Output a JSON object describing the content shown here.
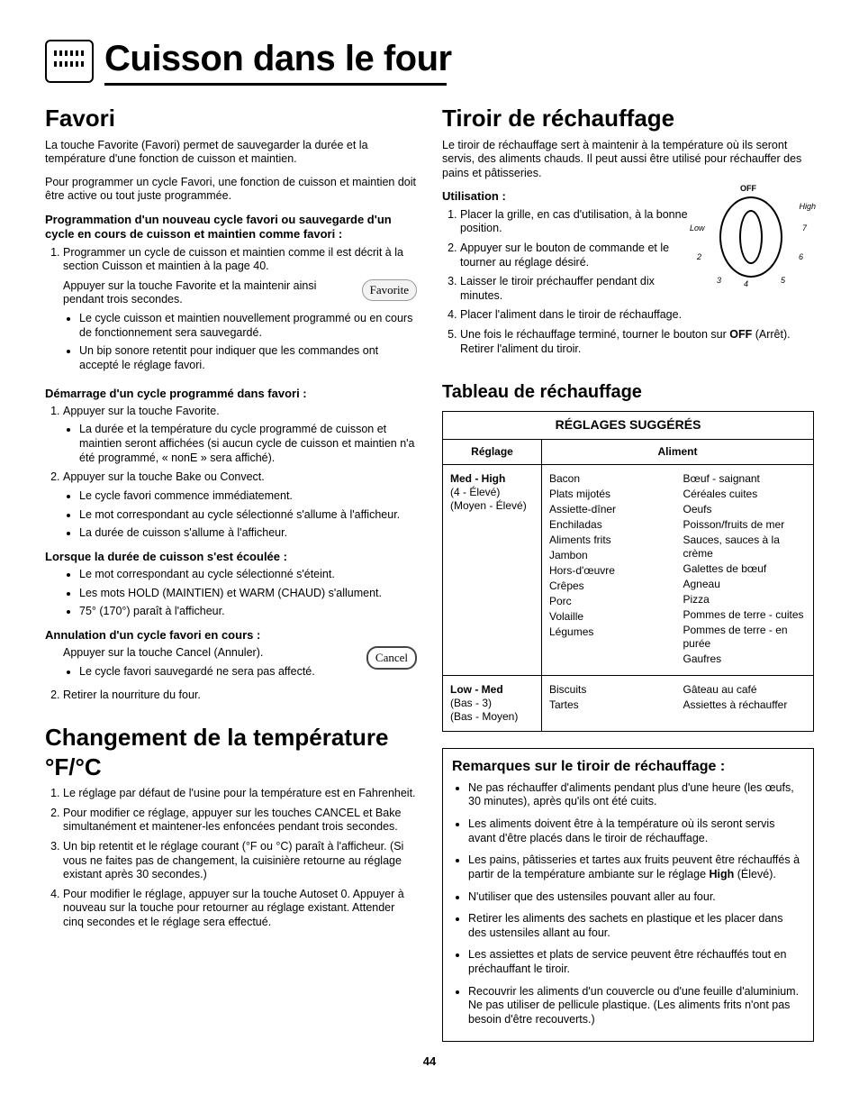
{
  "page_number": "44",
  "header": {
    "title": "Cuisson dans le four"
  },
  "left": {
    "favori": {
      "heading": "Favori",
      "intro1": "La touche Favorite (Favori) permet de sauvegarder la durée et la température d'une fonction de cuisson et maintien.",
      "intro2": "Pour programmer un cycle Favori, une fonction de cuisson et maintien doit être active ou tout juste programmée.",
      "sub1": "Programmation d'un nouveau cycle favori ou sauvegarde d'un cycle en cours de cuisson et maintien comme favori :",
      "ol1": {
        "i1": "Programmer un cycle de cuisson et maintien comme il est décrit à la section Cuisson et maintien à la page 40.",
        "i2": "Appuyer sur la touche Favorite et la maintenir ainsi pendant trois secondes.",
        "b2a": "Le cycle cuisson et maintien nouvellement programmé ou en cours de fonctionnement sera sauvegardé.",
        "b2b": "Un bip sonore retentit pour indiquer que les commandes ont accepté le réglage favori."
      },
      "favorite_btn": "Favorite",
      "sub2": "Démarrage d'un cycle programmé dans favori :",
      "ol2": {
        "i1": "Appuyer sur la touche Favorite.",
        "b1a": "La durée et la température du cycle programmé de cuisson et maintien seront affichées (si aucun cycle de cuisson et maintien n'a été programmé, « nonE » sera affiché).",
        "i2": "Appuyer sur la touche Bake ou Convect.",
        "b2a": "Le cycle favori commence immédiatement.",
        "b2b": "Le mot correspondant au cycle sélectionné s'allume à l'afficheur.",
        "b2c": "La durée de cuisson s'allume à l'afficheur."
      },
      "sub3": "Lorsque la durée de cuisson s'est écoulée :",
      "ul3": {
        "a": "Le mot correspondant au cycle sélectionné s'éteint.",
        "b": "Les mots HOLD (MAINTIEN) et WARM (CHAUD) s'allument.",
        "c": "75° (170°) paraît à l'afficheur."
      },
      "sub4": "Annulation d'un cycle favori en cours :",
      "ol4": {
        "i1": "Appuyer sur la touche Cancel (Annuler).",
        "b1a": "Le cycle favori sauvegardé ne sera pas affecté.",
        "i2": "Retirer la nourriture du four."
      },
      "cancel_btn": "Cancel"
    },
    "temp": {
      "heading": "Changement de la température °F/°C",
      "ol": {
        "i1": "Le réglage par défaut de l'usine pour la température est en Fahrenheit.",
        "i2": "Pour modifier ce réglage, appuyer sur les touches CANCEL et Bake simultanément et maintener-les enfoncées pendant trois secondes.",
        "i3": "Un bip retentit et le réglage courant (°F ou °C) paraît à l'afficheur. (Si vous ne faites pas de changement, la cuisinière retourne au réglage existant après 30 secondes.)",
        "i4": "Pour modifier le réglage, appuyer sur la touche Autoset 0. Appuyer à nouveau sur la touche pour retourner au réglage existant. Attender cinq secondes et le réglage sera effectué."
      }
    }
  },
  "right": {
    "tiroir": {
      "heading": "Tiroir de réchauffage",
      "intro": "Le tiroir de réchauffage sert à maintenir à la température où ils seront servis, des aliments chauds. Il peut aussi être utilisé pour réchauffer des pains et pâtisseries.",
      "sub": "Utilisation :",
      "dial": {
        "off": "OFF",
        "high": "High",
        "low": "Low",
        "n2": "2",
        "n3": "3",
        "n4": "4",
        "n5": "5",
        "n6": "6",
        "n7": "7"
      },
      "ol": {
        "i1": "Placer la grille, en cas d'utilisation, à la bonne position.",
        "i2": "Appuyer sur le bouton de commande et le tourner au réglage désiré.",
        "i3": "Laisser le tiroir préchauffer pendant dix minutes.",
        "i4": "Placer l'aliment dans le tiroir de réchauffage.",
        "i5_a": "Une fois le réchauffage terminé, tourner le bouton sur ",
        "i5_b": "OFF",
        "i5_c": " (Arrêt). Retirer l'aliment du tiroir."
      }
    },
    "tableau": {
      "heading": "Tableau de réchauffage",
      "title": "RÉGLAGES SUGGÉRÉS",
      "col1": "Réglage",
      "col2": "Aliment",
      "row1": {
        "set_a": "Med - High",
        "set_b": "(4 - Élevé)",
        "set_c": "(Moyen - Élevé)",
        "left": [
          "Bacon",
          "Plats mijotés",
          "Assiette-dîner",
          "Enchiladas",
          "Aliments frits",
          "Jambon",
          "Hors-d'œuvre",
          "Crêpes",
          "Porc",
          "Volaille",
          "Légumes"
        ],
        "right": [
          "Bœuf - saignant",
          "Céréales cuites",
          "Oeufs",
          "Poisson/fruits de mer",
          "Sauces, sauces à la crème",
          "Galettes de bœuf",
          "Agneau",
          "Pizza",
          "Pommes de terre - cuites",
          "Pommes de terre - en purée",
          "Gaufres"
        ]
      },
      "row2": {
        "set_a": "Low - Med",
        "set_b": "(Bas - 3)",
        "set_c": "(Bas - Moyen)",
        "left": [
          "Biscuits",
          "Tartes"
        ],
        "right": [
          "Gâteau au café",
          "Assiettes à réchauffer"
        ]
      }
    },
    "remarques": {
      "heading": "Remarques sur le tiroir de réchauffage :",
      "items": {
        "a": "Ne pas réchauffer d'aliments pendant plus d'une heure (les œufs, 30 minutes), après qu'ils ont été cuits.",
        "b": "Les aliments doivent être à la température où ils seront servis avant d'être placés dans le tiroir de réchauffage.",
        "c_a": "Les pains, pâtisseries et tartes aux fruits peuvent être réchauffés à partir de la température ambiante sur le réglage ",
        "c_b": "High",
        "c_c": " (Élevé).",
        "d": "N'utiliser que des ustensiles pouvant aller au four.",
        "e": "Retirer les aliments des sachets en plastique et les placer dans des ustensiles allant au four.",
        "f": "Les assiettes et plats de service peuvent être réchauffés tout en préchauffant le tiroir.",
        "g": "Recouvrir les aliments d'un couvercle ou d'une feuille d'aluminium. Ne pas utiliser de pellicule plastique. (Les aliments frits n'ont pas besoin d'être recouverts.)"
      }
    }
  }
}
